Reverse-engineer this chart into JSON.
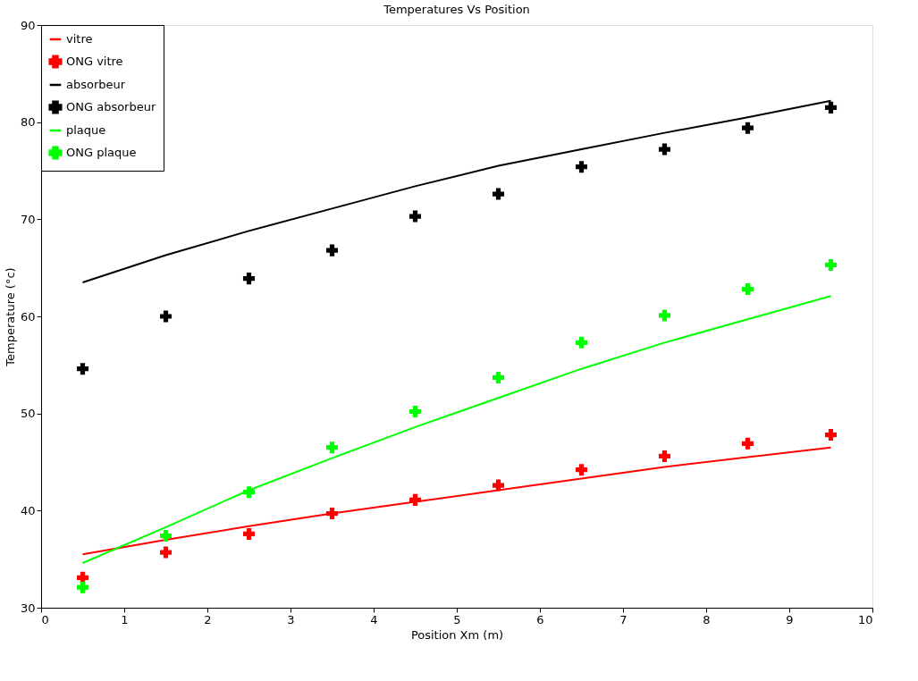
{
  "chart_data": {
    "type": "line",
    "title": "Temperatures Vs Position",
    "xlabel": "Position Xm (m)",
    "ylabel": "Temperature (°c)",
    "xlim": [
      0,
      10
    ],
    "xticks": [
      0,
      1,
      2,
      3,
      4,
      5,
      6,
      7,
      8,
      9,
      10
    ],
    "ylim": [
      30,
      90
    ],
    "yticks": [
      30,
      40,
      50,
      60,
      70,
      80,
      90
    ],
    "grid": false,
    "legend": "top left",
    "series": [
      {
        "name": "vitre",
        "color": "#ff0000",
        "x": [
          0.5,
          1.5,
          2.5,
          3.5,
          4.5,
          5.5,
          6.5,
          7.5,
          8.5,
          9.5
        ],
        "values": [
          35.5,
          37.0,
          38.4,
          39.7,
          40.9,
          42.1,
          43.3,
          44.5,
          45.5,
          46.5
        ]
      },
      {
        "name": "ONG vitre",
        "type": "scatter",
        "marker": "cross",
        "color": "#ff0000",
        "x": [
          0.5,
          1.5,
          2.5,
          3.5,
          4.5,
          5.5,
          6.5,
          7.5,
          8.5,
          9.5
        ],
        "values": [
          33.1,
          35.7,
          37.6,
          39.7,
          41.1,
          42.6,
          44.2,
          45.6,
          46.9,
          47.8
        ]
      },
      {
        "name": "absorbeur",
        "color": "#000000",
        "x": [
          0.5,
          1.5,
          2.5,
          3.5,
          4.5,
          5.5,
          6.5,
          7.5,
          8.5,
          9.5
        ],
        "values": [
          63.5,
          66.3,
          68.8,
          71.1,
          73.4,
          75.5,
          77.2,
          78.9,
          80.5,
          82.2
        ]
      },
      {
        "name": "ONG absorbeur",
        "type": "scatter",
        "marker": "cross",
        "color": "#000000",
        "x": [
          0.5,
          1.5,
          2.5,
          3.5,
          4.5,
          5.5,
          6.5,
          7.5,
          8.5,
          9.5
        ],
        "values": [
          54.6,
          60.0,
          63.9,
          66.8,
          70.3,
          72.6,
          75.4,
          77.2,
          79.4,
          81.5
        ]
      },
      {
        "name": "plaque",
        "color": "#00ff00",
        "x": [
          0.5,
          1.5,
          2.5,
          3.5,
          4.5,
          5.5,
          6.5,
          7.5,
          8.5,
          9.5
        ],
        "values": [
          34.6,
          38.3,
          42.1,
          45.4,
          48.6,
          51.6,
          54.6,
          57.3,
          59.7,
          62.1
        ]
      },
      {
        "name": "ONG plaque",
        "type": "scatter",
        "marker": "cross",
        "color": "#00ff00",
        "x": [
          0.5,
          1.5,
          2.5,
          3.5,
          4.5,
          5.5,
          6.5,
          7.5,
          8.5,
          9.5
        ],
        "values": [
          32.1,
          37.4,
          41.9,
          46.5,
          50.2,
          53.7,
          57.3,
          60.1,
          62.8,
          65.3
        ]
      }
    ]
  }
}
